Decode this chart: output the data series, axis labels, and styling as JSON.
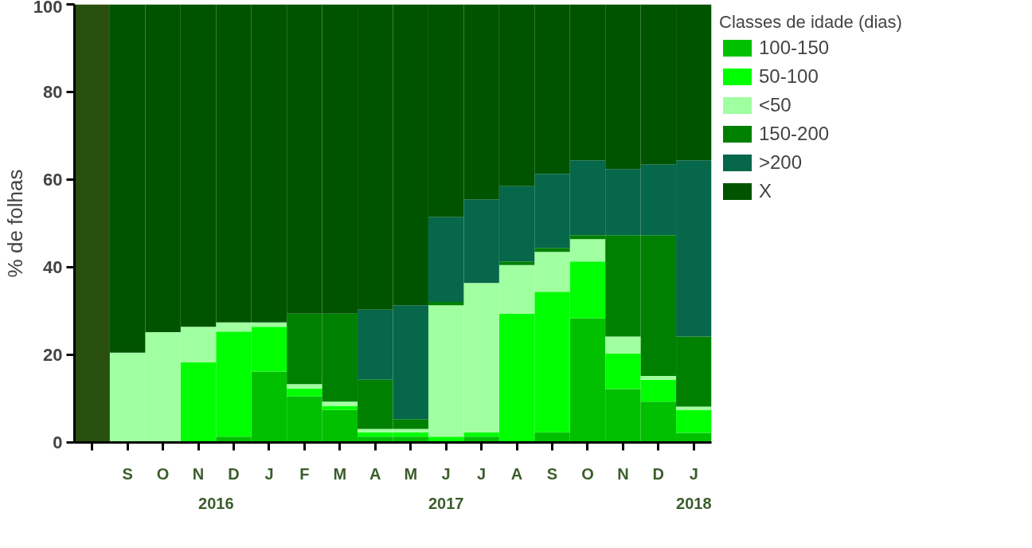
{
  "chart_data": {
    "type": "bar",
    "stacked": true,
    "ylabel": "% de folhas",
    "legend_title": "Classes de idade (dias)",
    "legend": "right",
    "grid": false,
    "categories": [
      null,
      "S",
      "O",
      "N",
      "D",
      "J",
      "F",
      "M",
      "A",
      "M",
      "J",
      "J",
      "A",
      "S",
      "O",
      "N",
      "D",
      "J"
    ],
    "ylim": [
      0,
      100
    ],
    "yticks": [
      0,
      20,
      40,
      60,
      80,
      100
    ],
    "series": [
      {
        "color": "#2a5010",
        "values": [
          100,
          0,
          0,
          0,
          0,
          0,
          0,
          0,
          0,
          0,
          0,
          0,
          0,
          0,
          0,
          0,
          0,
          0
        ]
      },
      {
        "name": "100-150",
        "color": "#00c000",
        "values": [
          0,
          0,
          0,
          0,
          1.3,
          16.2,
          10.5,
          7.4,
          1.3,
          1.3,
          0,
          1.3,
          0,
          2.3,
          28.3,
          12.2,
          9.3,
          2.2
        ]
      },
      {
        "name": "50-100",
        "color": "#00ff00",
        "values": [
          0,
          0,
          0,
          18.3,
          24.0,
          10.2,
          1.8,
          0.9,
          1.0,
          1.0,
          1.3,
          1.0,
          29.4,
          32.1,
          13.0,
          8.1,
          5.0,
          5.2
        ]
      },
      {
        "name": "<50",
        "color": "#a0ffa0",
        "values": [
          0,
          20.5,
          25.2,
          8.1,
          2.1,
          1.0,
          1.0,
          1.0,
          0.8,
          0.8,
          30.0,
          34.1,
          11.1,
          9.1,
          5.1,
          3.9,
          0.9,
          0.8
        ]
      },
      {
        "name": "150-200",
        "color": "#008000",
        "values": [
          0,
          0,
          0,
          0,
          0,
          0,
          16.1,
          20.1,
          11.2,
          2.2,
          0.8,
          0,
          0.8,
          0.9,
          0.9,
          23.1,
          32.1,
          16.0
        ]
      },
      {
        "name": ">200",
        "color": "#06674a",
        "values": [
          0,
          0,
          0,
          0,
          0,
          0,
          0,
          0,
          16.0,
          26.0,
          19.4,
          19.1,
          17.2,
          16.9,
          17.1,
          15.1,
          16.2,
          40.2
        ]
      },
      {
        "name": "X",
        "color": "#005400",
        "values": [
          0,
          79.5,
          74.8,
          73.6,
          72.6,
          72.6,
          70.6,
          70.6,
          69.7,
          68.7,
          48.5,
          44.5,
          41.5,
          38.7,
          35.6,
          37.6,
          36.5,
          35.6
        ]
      }
    ],
    "annotations": [
      "2016",
      "2017",
      "2018"
    ]
  }
}
